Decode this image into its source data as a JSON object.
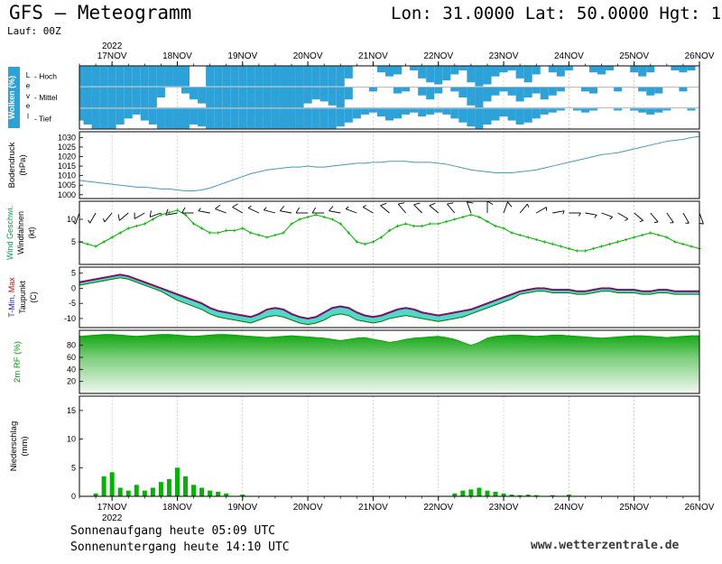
{
  "header": {
    "title": "GFS — Meteogramm",
    "coordinates": "Lon: 31.0000 Lat: 50.0000 Hgt: 1",
    "run_label": "Lauf: 00Z"
  },
  "footer": {
    "sunrise": "Sonnenaufgang heute 05:09 UTC",
    "sunset": "Sonnenuntergang heute 14:10 UTC",
    "website": "www.wetterzentrale.de"
  },
  "x_axis": {
    "year": "2022",
    "day_labels": [
      "17NOV",
      "18NOV",
      "19NOV",
      "20NOV",
      "21NOV",
      "22NOV",
      "23NOV",
      "24NOV",
      "25NOV",
      "26NOV"
    ],
    "step_hours": 3,
    "total_hours": 228,
    "first_day_tick_hour": 12
  },
  "colors": {
    "cloud_fill": "#2da2d8",
    "pressure_line": "#4898b0",
    "wind_line": "#00b400",
    "temp_max": "#cc0000",
    "temp_min": "#2222cc",
    "dewpoint": "#007700",
    "temp_band": "#35d0c0",
    "rh_top": "#00a000",
    "rh_bottom": "#f2f7f2",
    "precip_bar": "#00b400",
    "grid": "#bdbdbd"
  },
  "chart_data": [
    {
      "id": "clouds",
      "type": "area",
      "label": "Wolken (%)",
      "label_color": "#ffffff",
      "label_bg": "#2da2d8",
      "level_label": "Level",
      "unit": "%",
      "rows": [
        {
          "name": "Hoch",
          "values": [
            100,
            100,
            100,
            100,
            100,
            100,
            100,
            100,
            100,
            100,
            100,
            100,
            100,
            100,
            0,
            0,
            100,
            100,
            100,
            100,
            100,
            100,
            100,
            100,
            100,
            100,
            100,
            100,
            100,
            100,
            100,
            100,
            100,
            60,
            0,
            0,
            0,
            30,
            50,
            40,
            0,
            20,
            60,
            80,
            90,
            70,
            40,
            20,
            80,
            100,
            90,
            50,
            30,
            20,
            60,
            80,
            40,
            0,
            30,
            50,
            20,
            0,
            0,
            30,
            40,
            20,
            0,
            0,
            30,
            50,
            30,
            0,
            0,
            20,
            30,
            20,
            0
          ]
        },
        {
          "name": "Mittel",
          "values": [
            100,
            100,
            100,
            100,
            100,
            100,
            100,
            100,
            100,
            100,
            50,
            0,
            0,
            30,
            60,
            80,
            100,
            100,
            100,
            100,
            100,
            100,
            100,
            100,
            100,
            100,
            100,
            100,
            80,
            60,
            70,
            90,
            100,
            60,
            0,
            0,
            20,
            0,
            0,
            30,
            20,
            0,
            40,
            60,
            30,
            0,
            20,
            50,
            90,
            100,
            70,
            40,
            20,
            40,
            70,
            50,
            30,
            60,
            40,
            20,
            0,
            0,
            20,
            30,
            0,
            0,
            20,
            0,
            0,
            20,
            40,
            30,
            0,
            0,
            20,
            0,
            0
          ]
        },
        {
          "name": "Tief",
          "values": [
            60,
            80,
            100,
            100,
            100,
            80,
            50,
            30,
            60,
            80,
            100,
            100,
            100,
            100,
            80,
            90,
            100,
            100,
            100,
            100,
            100,
            100,
            100,
            100,
            100,
            100,
            100,
            100,
            100,
            100,
            100,
            100,
            90,
            70,
            50,
            30,
            20,
            40,
            60,
            50,
            30,
            20,
            40,
            30,
            20,
            30,
            50,
            70,
            90,
            100,
            80,
            60,
            40,
            60,
            80,
            70,
            50,
            30,
            20,
            10,
            0,
            10,
            20,
            10,
            0,
            0,
            10,
            0,
            10,
            20,
            30,
            20,
            10,
            0,
            0,
            10,
            0
          ]
        }
      ]
    },
    {
      "id": "pressure",
      "type": "line",
      "ylabel_lines": [
        "Bodendruck",
        "(hPa)"
      ],
      "yticks": [
        1030,
        1025,
        1020,
        1015,
        1010,
        1005,
        1000
      ],
      "ylim": [
        998,
        1033
      ],
      "values": [
        1007.5,
        1007,
        1006.5,
        1006,
        1005.5,
        1005,
        1004.5,
        1004,
        1004,
        1003.5,
        1003,
        1003,
        1002.5,
        1002,
        1002,
        1002.5,
        1003.5,
        1005,
        1006.5,
        1008,
        1009.5,
        1011,
        1012,
        1013,
        1013.5,
        1014,
        1014.5,
        1014.5,
        1015,
        1014.5,
        1014.5,
        1015,
        1015.5,
        1016,
        1016.5,
        1016.5,
        1017,
        1017,
        1017.5,
        1017.5,
        1017.5,
        1017,
        1017,
        1017,
        1016.5,
        1016,
        1015,
        1014,
        1013,
        1012.5,
        1012,
        1011.5,
        1011.5,
        1011.5,
        1012,
        1012.5,
        1013,
        1014,
        1015,
        1016,
        1017,
        1018,
        1019,
        1020,
        1021,
        1021.5,
        1022,
        1023,
        1024,
        1025,
        1026,
        1027,
        1028,
        1028.5,
        1029,
        1030,
        1030.5
      ]
    },
    {
      "id": "wind",
      "type": "line",
      "ylabel_lines_colored": [
        {
          "text": "Wind Geschwi.",
          "color": "#00a050"
        },
        {
          "text": "Windfahnen",
          "color": "#000000"
        },
        {
          "text": "(kt)",
          "color": "#000000"
        }
      ],
      "yticks": [
        10,
        5
      ],
      "ylim": [
        0,
        14
      ],
      "speed": [
        5,
        4.5,
        4,
        5,
        6,
        7,
        8,
        8.5,
        9,
        10,
        11,
        11.5,
        12,
        11,
        9,
        8,
        7,
        7,
        7.5,
        7.5,
        8,
        7,
        6.5,
        6,
        6.5,
        7,
        9,
        10,
        10.5,
        11,
        10.5,
        10,
        9,
        7,
        5,
        4.5,
        5,
        6,
        7.5,
        8.5,
        9,
        8.5,
        8.5,
        9,
        9,
        9.5,
        10,
        10.5,
        11,
        10.5,
        9.5,
        8.5,
        8,
        7,
        6.5,
        6,
        5.5,
        5,
        4.5,
        4,
        3.5,
        3,
        3,
        3.5,
        4,
        4.5,
        5,
        5.5,
        6,
        6.5,
        7,
        6.5,
        6,
        5,
        4.5,
        4,
        3.5
      ],
      "direction_deg": [
        200,
        205,
        210,
        215,
        220,
        225,
        230,
        235,
        240,
        245,
        250,
        255,
        260,
        265,
        270,
        275,
        280,
        285,
        290,
        295,
        300,
        300,
        295,
        290,
        285,
        280,
        280,
        275,
        270,
        270,
        270,
        275,
        280,
        285,
        290,
        295,
        300,
        305,
        310,
        315,
        320,
        320,
        315,
        310,
        310,
        315,
        320,
        330,
        340,
        350,
        0,
        10,
        20,
        30,
        40,
        50,
        60,
        70,
        80,
        90,
        90,
        95,
        100,
        105,
        110,
        115,
        120,
        125,
        130,
        135,
        140,
        140,
        145,
        150,
        150,
        155,
        160
      ]
    },
    {
      "id": "temperature",
      "type": "line",
      "ylabel_line1": [
        {
          "text": "T-Min, ",
          "color": "#2222cc"
        },
        {
          "text": "Max",
          "color": "#cc0000"
        }
      ],
      "ylabel_line2": "Taupunkt",
      "ylabel_line3": "(C)",
      "yticks": [
        5,
        0,
        -5,
        -10
      ],
      "ylim": [
        -13,
        7
      ],
      "temperature": [
        2,
        2.5,
        3,
        3.5,
        4,
        4.5,
        4,
        3,
        2,
        1,
        0,
        -1,
        -2,
        -3,
        -4,
        -5,
        -6.5,
        -7.5,
        -8,
        -8.5,
        -9,
        -9.5,
        -8.5,
        -7,
        -6.5,
        -7,
        -8.5,
        -9.5,
        -10,
        -9.5,
        -8,
        -6.5,
        -6,
        -6.5,
        -8,
        -9,
        -9.5,
        -9,
        -8,
        -7,
        -6.5,
        -7,
        -8,
        -8.5,
        -9,
        -8.5,
        -8,
        -7.5,
        -7,
        -6,
        -5,
        -4,
        -3,
        -2,
        -1,
        -0.5,
        0,
        0,
        -0.5,
        -0.5,
        -0.5,
        -1,
        -1,
        -0.5,
        0,
        0,
        -0.5,
        -0.5,
        -0.5,
        -1,
        -1,
        -0.5,
        -0.5,
        -1,
        -1,
        -1,
        -1
      ],
      "dewpoint": [
        1,
        1.5,
        2,
        2.5,
        3,
        3.5,
        3,
        2,
        1,
        0,
        -1,
        -2.5,
        -4,
        -5,
        -6,
        -7,
        -8.5,
        -9.5,
        -10,
        -10.5,
        -11,
        -11.5,
        -10.5,
        -9.5,
        -9,
        -9.5,
        -10.5,
        -11.5,
        -12,
        -11.5,
        -10.5,
        -9,
        -8.5,
        -9,
        -10.5,
        -11,
        -11.5,
        -11,
        -10,
        -9.5,
        -9,
        -9.5,
        -10,
        -10.5,
        -11,
        -10.5,
        -10,
        -9.5,
        -8.5,
        -7.5,
        -6.5,
        -5.5,
        -4.5,
        -3.5,
        -2,
        -1.5,
        -1,
        -1,
        -1.5,
        -1.5,
        -1.5,
        -2,
        -2,
        -1.5,
        -1,
        -1,
        -1.5,
        -1.5,
        -1.5,
        -2,
        -2,
        -1.5,
        -1.5,
        -2,
        -2,
        -2,
        -2
      ]
    },
    {
      "id": "humidity",
      "type": "area",
      "ylabel": "2m RF (%)",
      "ylabel_color": "#00a000",
      "yticks": [
        80,
        60,
        40,
        20
      ],
      "ylim": [
        0,
        105
      ],
      "values": [
        95,
        96,
        97,
        98,
        98,
        97,
        96,
        95,
        96,
        97,
        98,
        98,
        97,
        96,
        95,
        96,
        97,
        98,
        98,
        97,
        96,
        95,
        94,
        93,
        94,
        95,
        96,
        95,
        94,
        93,
        92,
        90,
        88,
        90,
        92,
        93,
        90,
        88,
        85,
        87,
        90,
        92,
        93,
        94,
        95,
        93,
        90,
        85,
        80,
        85,
        92,
        95,
        96,
        97,
        97,
        96,
        95,
        96,
        97,
        97,
        96,
        95,
        94,
        93,
        92,
        93,
        94,
        95,
        96,
        96,
        95,
        94,
        93,
        94,
        95,
        96,
        96
      ]
    },
    {
      "id": "precipitation",
      "type": "bar",
      "ylabel_lines": [
        "Niederschlag",
        "(mm)"
      ],
      "yticks": [
        15,
        10,
        5,
        0
      ],
      "ylim": [
        0,
        17.5
      ],
      "values": [
        0,
        0,
        0.5,
        3.5,
        4.2,
        1.5,
        1,
        2,
        1,
        1.5,
        2.5,
        3,
        5,
        3.5,
        2,
        1.5,
        1,
        0.8,
        0.5,
        0,
        0.3,
        0,
        0,
        0,
        0,
        0,
        0,
        0,
        0,
        0,
        0,
        0,
        0,
        0,
        0,
        0,
        0,
        0,
        0,
        0,
        0,
        0,
        0,
        0,
        0,
        0,
        0.5,
        1,
        1.2,
        1.5,
        1,
        0.8,
        0.5,
        0.3,
        0.2,
        0.3,
        0.2,
        0,
        0.2,
        0,
        0.3,
        0,
        0,
        0,
        0,
        0,
        0,
        0,
        0,
        0,
        0,
        0,
        0,
        0,
        0,
        0,
        0
      ]
    }
  ]
}
